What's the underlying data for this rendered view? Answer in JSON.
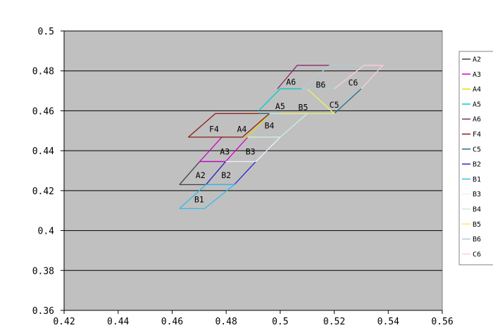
{
  "chart_data": {
    "type": "line",
    "title": "",
    "xlabel": "",
    "ylabel": "",
    "xlim": [
      0.42,
      0.56
    ],
    "ylim": [
      0.36,
      0.5
    ],
    "x_ticks": [
      0.42,
      0.44,
      0.46,
      0.48,
      0.5,
      0.52,
      0.54,
      0.56
    ],
    "y_ticks": [
      0.36,
      0.38,
      0.4,
      0.42,
      0.44,
      0.46,
      0.48,
      0.5
    ],
    "x_tick_labels": [
      "0.42",
      "0.44",
      "0.46",
      "0.48",
      "0.5",
      "0.52",
      "0.54",
      "0.56"
    ],
    "y_tick_labels": [
      "0.36",
      "0.38",
      "0.4",
      "0.42",
      "0.44",
      "0.46",
      "0.48",
      "0.5"
    ],
    "grid": "horizontal",
    "legend_position": "right",
    "background_color": "#c0c0c0",
    "series": [
      {
        "name": "A2",
        "color": "#404040",
        "points": [
          [
            0.4627,
            0.423
          ],
          [
            0.4702,
            0.4346
          ],
          [
            0.4798,
            0.4346
          ],
          [
            0.4725,
            0.423
          ],
          [
            0.4627,
            0.423
          ]
        ],
        "label": {
          "text": "A2",
          "x": 0.4705,
          "y": 0.4277
        }
      },
      {
        "name": "A3",
        "color": "#cc00cc",
        "points": [
          [
            0.4702,
            0.4346
          ],
          [
            0.4784,
            0.4468
          ],
          [
            0.488,
            0.4468
          ],
          [
            0.4798,
            0.4346
          ],
          [
            0.4702,
            0.4346
          ]
        ],
        "label": {
          "text": "A3",
          "x": 0.4795,
          "y": 0.4395
        }
      },
      {
        "name": "A4",
        "color": "#e0e000",
        "points": [
          [
            0.4784,
            0.4468
          ],
          [
            0.488,
            0.4468
          ],
          [
            0.496,
            0.4586
          ],
          [
            0.4864,
            0.4586
          ]
        ],
        "label": {
          "text": "A4",
          "x": 0.4858,
          "y": 0.4508
        }
      },
      {
        "name": "A5",
        "color": "#00cccc",
        "points": [
          [
            0.492,
            0.46
          ],
          [
            0.5,
            0.471
          ],
          [
            0.508,
            0.471
          ]
        ],
        "label": {
          "text": "A5",
          "x": 0.5,
          "y": 0.4623
        }
      },
      {
        "name": "A6",
        "color": "#8b2a6b",
        "points": [
          [
            0.499,
            0.471
          ],
          [
            0.5063,
            0.4828
          ],
          [
            0.5183,
            0.4828
          ]
        ],
        "label": {
          "text": "A6",
          "x": 0.504,
          "y": 0.4745
        }
      },
      {
        "name": "F4",
        "color": "#8b1a1a",
        "points": [
          [
            0.466,
            0.4468
          ],
          [
            0.476,
            0.4586
          ],
          [
            0.496,
            0.4586
          ],
          [
            0.486,
            0.4468
          ],
          [
            0.466,
            0.4468
          ]
        ],
        "label": {
          "text": "F4",
          "x": 0.4755,
          "y": 0.4508
        }
      },
      {
        "name": "C5",
        "color": "#1f6f8b",
        "points": [
          [
            0.492,
            0.4586
          ],
          [
            0.52,
            0.4586
          ],
          [
            0.53,
            0.471
          ]
        ],
        "label": {
          "text": "C5",
          "x": 0.52,
          "y": 0.463
        }
      },
      {
        "name": "B2",
        "color": "#2b2bcc",
        "points": [
          [
            0.4798,
            0.4346
          ],
          [
            0.4725,
            0.423
          ],
          [
            0.483,
            0.423
          ],
          [
            0.491,
            0.4346
          ]
        ],
        "label": {
          "text": "B2",
          "x": 0.48,
          "y": 0.4277
        }
      },
      {
        "name": "B1",
        "color": "#33bbee",
        "points": [
          [
            0.4627,
            0.411
          ],
          [
            0.472,
            0.411
          ],
          [
            0.483,
            0.423
          ],
          [
            0.4725,
            0.423
          ],
          [
            0.4627,
            0.411
          ]
        ],
        "label": {
          "text": "B1",
          "x": 0.47,
          "y": 0.4155
        }
      },
      {
        "name": "B3",
        "color": "#f0f0ff",
        "points": [
          [
            0.4798,
            0.4346
          ],
          [
            0.491,
            0.4346
          ],
          [
            0.5,
            0.4468
          ],
          [
            0.488,
            0.4468
          ]
        ],
        "label": {
          "text": "B3",
          "x": 0.489,
          "y": 0.4395
        }
      },
      {
        "name": "B4",
        "color": "#c8f0e0",
        "points": [
          [
            0.488,
            0.4468
          ],
          [
            0.5,
            0.4468
          ],
          [
            0.51,
            0.4586
          ],
          [
            0.496,
            0.4586
          ]
        ],
        "label": {
          "text": "B4",
          "x": 0.496,
          "y": 0.4525
        }
      },
      {
        "name": "B5",
        "color": "#f0f066",
        "points": [
          [
            0.5,
            0.4586
          ],
          [
            0.52,
            0.4586
          ],
          [
            0.51,
            0.471
          ]
        ],
        "label": {
          "text": "B5",
          "x": 0.5085,
          "y": 0.4618
        }
      },
      {
        "name": "B6",
        "color": "#b0ccd0",
        "points": [
          [
            0.508,
            0.471
          ],
          [
            0.5183,
            0.4828
          ],
          [
            0.531,
            0.4828
          ],
          [
            0.52,
            0.471
          ],
          [
            0.508,
            0.471
          ]
        ],
        "label": {
          "text": "B6",
          "x": 0.515,
          "y": 0.473
        }
      },
      {
        "name": "C6",
        "color": "#ffccdd",
        "points": [
          [
            0.52,
            0.471
          ],
          [
            0.531,
            0.4828
          ],
          [
            0.538,
            0.4828
          ],
          [
            0.53,
            0.471
          ]
        ],
        "label": {
          "text": "C6",
          "x": 0.527,
          "y": 0.474
        }
      }
    ]
  }
}
